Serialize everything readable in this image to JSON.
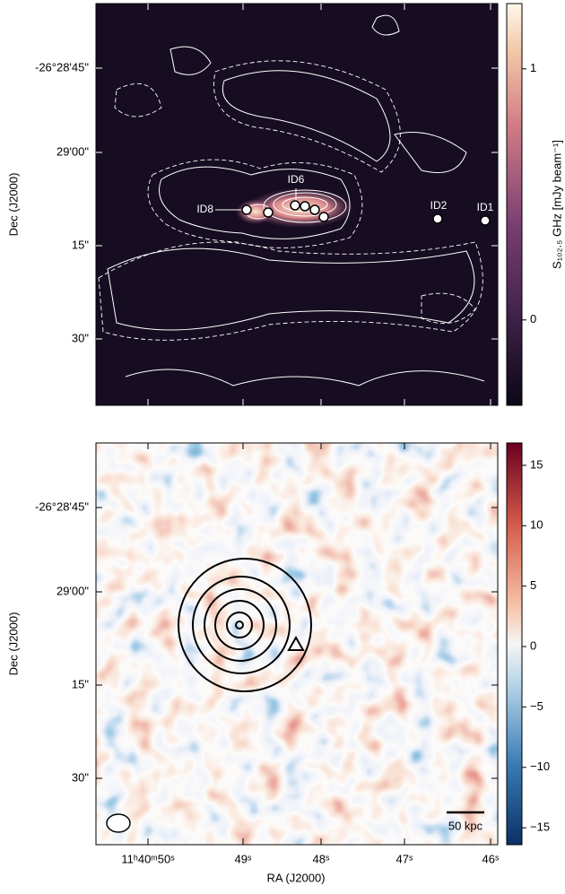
{
  "xlabel": "RA (J2000)",
  "ylabel": "Dec (J2000)",
  "xticks": [
    "11ʰ40ᵐ50ˢ",
    "49ˢ",
    "48ˢ",
    "47ˢ",
    "46ˢ"
  ],
  "yticks": [
    "-26°28'45\"",
    "29'00\"",
    "15\"",
    "30\""
  ],
  "panels": [
    {
      "colorbar": {
        "label": "S₁₀₂.₅ GHz [mJy beam⁻¹]",
        "lim": [
          -0.34,
          1.26
        ],
        "ticks": [
          0,
          1
        ]
      },
      "sources": [
        "ID6",
        "ID8",
        "ID2",
        "ID1"
      ]
    },
    {
      "colorbar": {
        "lim": [
          -16.4,
          16.85
        ],
        "ticks": [
          -15,
          -10,
          -5,
          0,
          5,
          10,
          15
        ],
        "tick_labels": [
          "−15",
          "−10",
          "−5",
          "0",
          "5",
          "10",
          "15"
        ]
      },
      "scalebar": "50 kpc"
    }
  ]
}
